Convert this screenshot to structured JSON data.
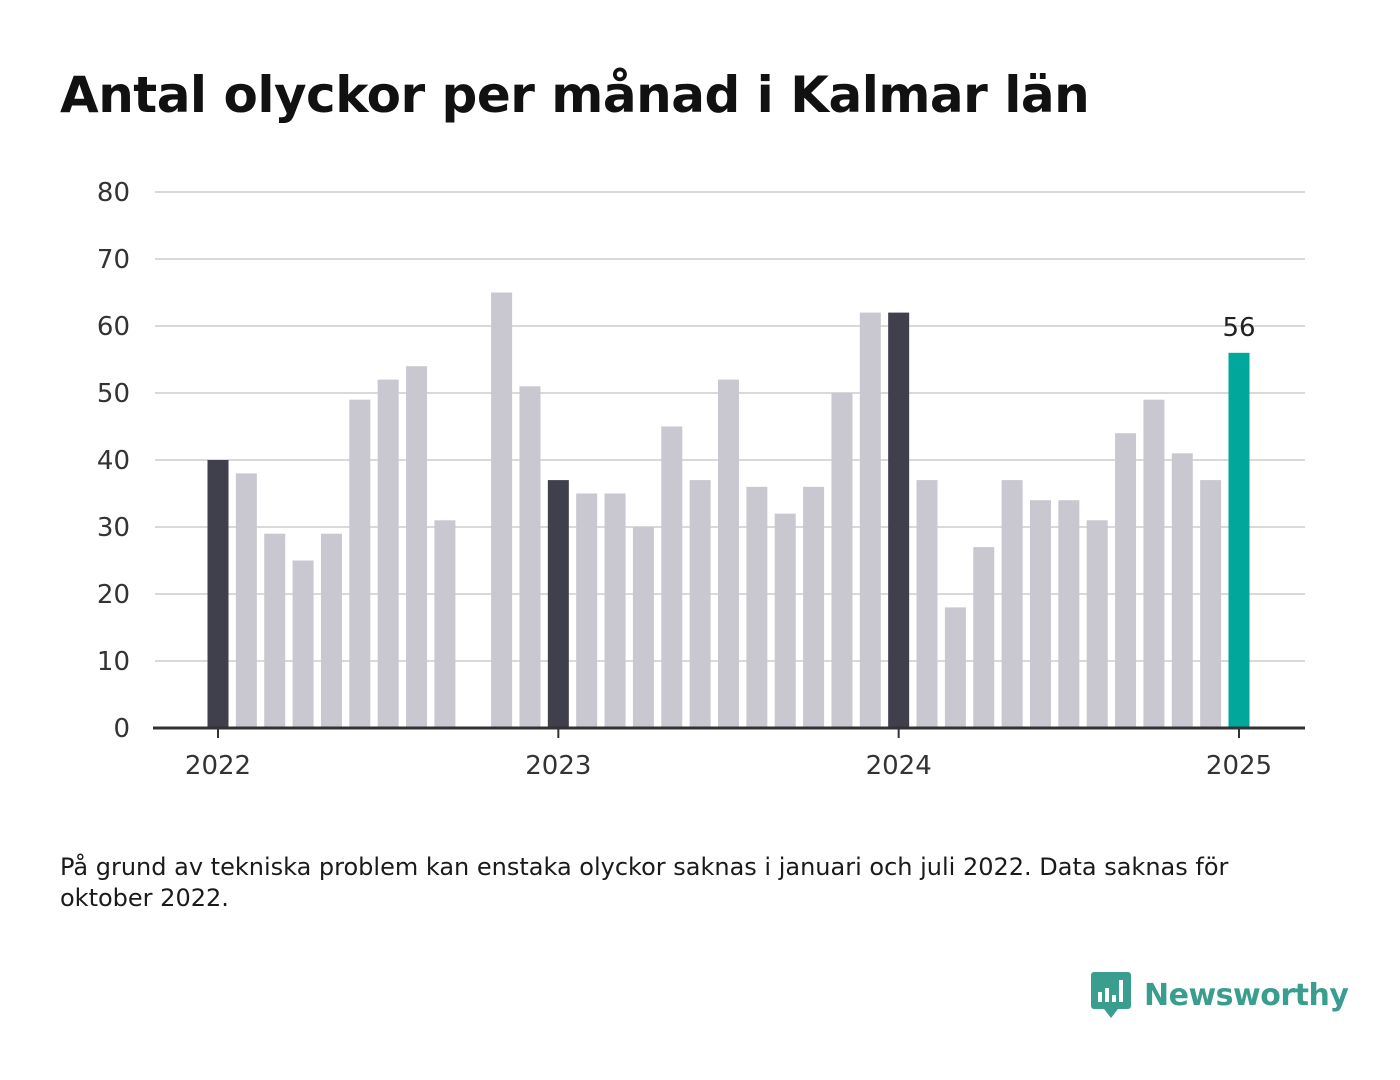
{
  "title": "Antal olyckor per månad i Kalmar län",
  "footnote": "På grund av tekniska problem kan enstaka olyckor saknas i januari och juli 2022. Data saknas för oktober 2022.",
  "brand": {
    "name": "Newsworthy",
    "icon": "newsworthy-logo-icon",
    "color": "#3a9e8f"
  },
  "colors": {
    "bar": "#c9c8d0",
    "year_start": "#403f4c",
    "highlight": "#00a79a",
    "grid": "#d9d9d9",
    "axis": "#333333"
  },
  "chart_data": {
    "type": "bar",
    "title": "Antal olyckor per månad i Kalmar län",
    "xlabel": "",
    "ylabel": "",
    "ylim": [
      0,
      80
    ],
    "yticks": [
      0,
      10,
      20,
      30,
      40,
      50,
      60,
      70,
      80
    ],
    "x_tick_labels": [
      "2022",
      "2023",
      "2024",
      "2025"
    ],
    "grid": true,
    "x": [
      "2022-01",
      "2022-02",
      "2022-03",
      "2022-04",
      "2022-05",
      "2022-06",
      "2022-07",
      "2022-08",
      "2022-09",
      "2022-10",
      "2022-11",
      "2022-12",
      "2023-01",
      "2023-02",
      "2023-03",
      "2023-04",
      "2023-05",
      "2023-06",
      "2023-07",
      "2023-08",
      "2023-09",
      "2023-10",
      "2023-11",
      "2023-12",
      "2024-01",
      "2024-02",
      "2024-03",
      "2024-04",
      "2024-05",
      "2024-06",
      "2024-07",
      "2024-08",
      "2024-09",
      "2024-10",
      "2024-11",
      "2024-12",
      "2025-01"
    ],
    "values": [
      40,
      38,
      29,
      25,
      29,
      49,
      52,
      54,
      31,
      null,
      65,
      51,
      37,
      35,
      35,
      30,
      45,
      37,
      52,
      36,
      32,
      36,
      50,
      62,
      62,
      37,
      18,
      27,
      37,
      34,
      34,
      31,
      44,
      49,
      41,
      37,
      56
    ],
    "annotations": [
      {
        "x": "2025-01",
        "text": "56"
      }
    ]
  }
}
